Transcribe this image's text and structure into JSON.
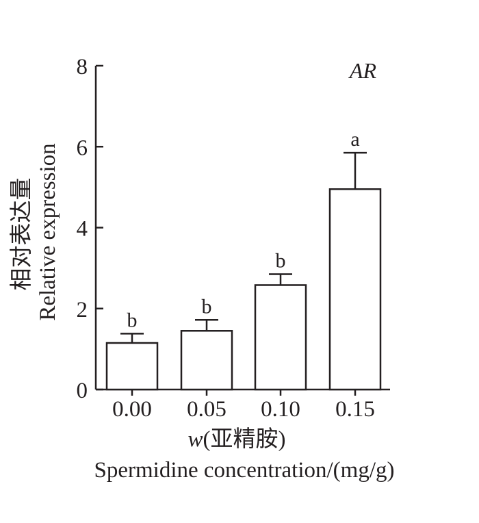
{
  "chart_data": {
    "type": "bar",
    "title": "AR",
    "categories": [
      "0.00",
      "0.05",
      "0.10",
      "0.15"
    ],
    "values": [
      1.15,
      1.45,
      2.58,
      4.95
    ],
    "error": [
      0.23,
      0.27,
      0.27,
      0.9
    ],
    "significance": [
      "b",
      "b",
      "b",
      "a"
    ],
    "ylabel_cn": "相对表达量",
    "ylabel_en": "Relative expression",
    "xlabel_var": "w",
    "xlabel_cn": "(亚精胺)",
    "xlabel_en": "Spermidine concentration/(mg/g)",
    "ylim": [
      0,
      8
    ],
    "yticks": [
      "0",
      "2",
      "4",
      "6",
      "8"
    ],
    "grid": false,
    "legend": "none",
    "colors": {
      "bar_fill": "#ffffff",
      "stroke": "#231f20"
    }
  }
}
